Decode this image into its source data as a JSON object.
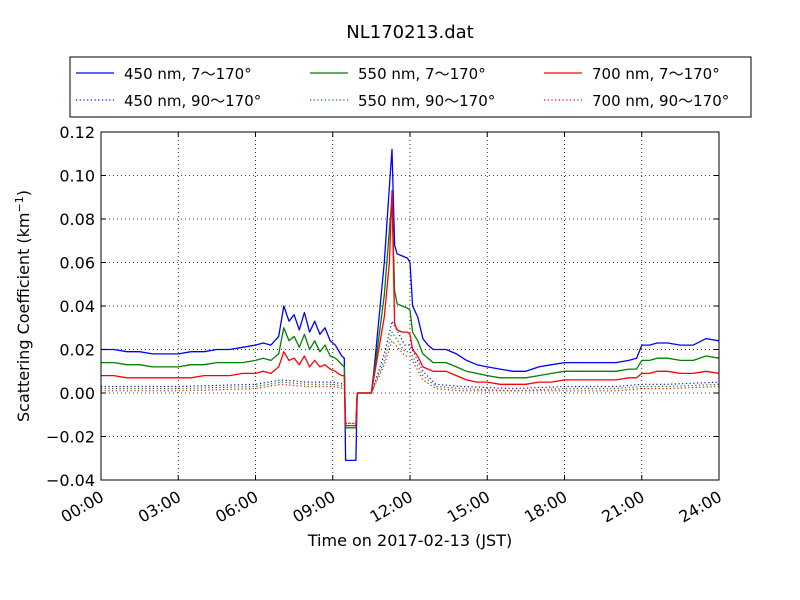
{
  "chart_data": {
    "type": "line",
    "title": "NL170213.dat",
    "xlabel": "Time on 2017-02-13 (JST)",
    "ylabel_main": "Scattering Coefficient (km",
    "ylabel_sup": "−1",
    "ylabel_close": ")",
    "xlim": [
      0,
      24
    ],
    "ylim": [
      -0.04,
      0.12
    ],
    "grid": true,
    "legend_position": "top (above plot)",
    "x_ticks": [
      0,
      3,
      6,
      9,
      12,
      15,
      18,
      21,
      24
    ],
    "x_tick_labels": [
      "00:00",
      "03:00",
      "06:00",
      "09:00",
      "12:00",
      "15:00",
      "18:00",
      "21:00",
      "24:00"
    ],
    "y_ticks": [
      -0.04,
      -0.02,
      0.0,
      0.02,
      0.04,
      0.06,
      0.08,
      0.1,
      0.12
    ],
    "y_tick_labels": [
      "−0.04",
      "−0.02",
      "0.00",
      "0.02",
      "0.04",
      "0.06",
      "0.08",
      "0.10",
      "0.12"
    ],
    "series": [
      {
        "name": "450 nm, 7～170°",
        "color": "#0000ff",
        "style": "solid",
        "x": [
          0.0,
          0.5,
          1.0,
          1.5,
          2.0,
          2.5,
          3.0,
          3.5,
          4.0,
          4.5,
          5.0,
          5.5,
          6.0,
          6.3,
          6.6,
          6.9,
          7.1,
          7.3,
          7.5,
          7.7,
          7.9,
          8.1,
          8.3,
          8.5,
          8.7,
          8.9,
          9.1,
          9.2,
          9.35,
          9.45,
          9.5,
          9.9,
          9.95,
          10.0,
          10.5,
          10.6,
          11.0,
          11.2,
          11.3,
          11.4,
          11.5,
          11.7,
          11.9,
          12.0,
          12.1,
          12.3,
          12.5,
          12.7,
          12.9,
          13.1,
          13.4,
          13.8,
          14.2,
          14.6,
          15.0,
          15.5,
          16.0,
          16.5,
          17.0,
          17.5,
          18.0,
          18.5,
          19.0,
          19.5,
          20.0,
          20.5,
          20.8,
          21.0,
          21.3,
          21.6,
          22.0,
          22.5,
          23.0,
          23.5,
          24.0
        ],
        "y": [
          0.02,
          0.02,
          0.019,
          0.019,
          0.018,
          0.018,
          0.018,
          0.019,
          0.019,
          0.02,
          0.02,
          0.021,
          0.022,
          0.023,
          0.022,
          0.026,
          0.04,
          0.033,
          0.036,
          0.029,
          0.037,
          0.028,
          0.033,
          0.027,
          0.03,
          0.024,
          0.022,
          0.02,
          0.017,
          0.016,
          -0.031,
          -0.031,
          0.0,
          0.0,
          0.0,
          0.01,
          0.06,
          0.095,
          0.112,
          0.068,
          0.064,
          0.063,
          0.062,
          0.06,
          0.04,
          0.035,
          0.025,
          0.022,
          0.02,
          0.02,
          0.02,
          0.018,
          0.015,
          0.013,
          0.012,
          0.011,
          0.01,
          0.01,
          0.012,
          0.013,
          0.014,
          0.014,
          0.014,
          0.014,
          0.014,
          0.015,
          0.016,
          0.022,
          0.022,
          0.023,
          0.023,
          0.022,
          0.022,
          0.025,
          0.024
        ]
      },
      {
        "name": "450 nm, 90～170°",
        "color": "#0000ff",
        "style": "dotted",
        "x": [
          0.0,
          3.0,
          6.0,
          7.0,
          8.0,
          9.0,
          9.45,
          9.5,
          9.9,
          9.95,
          10.5,
          11.0,
          11.3,
          11.8,
          12.0,
          12.5,
          13.0,
          14.0,
          16.0,
          18.0,
          20.0,
          21.0,
          22.0,
          24.0
        ],
        "y": [
          0.003,
          0.003,
          0.004,
          0.006,
          0.005,
          0.005,
          0.004,
          -0.015,
          -0.015,
          0.0,
          0.0,
          0.018,
          0.033,
          0.022,
          0.022,
          0.01,
          0.004,
          0.003,
          0.002,
          0.003,
          0.003,
          0.004,
          0.004,
          0.005
        ]
      },
      {
        "name": "550 nm, 7～170°",
        "color": "#008000",
        "style": "solid",
        "x": [
          0.0,
          0.5,
          1.0,
          1.5,
          2.0,
          2.5,
          3.0,
          3.5,
          4.0,
          4.5,
          5.0,
          5.5,
          6.0,
          6.3,
          6.6,
          6.9,
          7.1,
          7.3,
          7.5,
          7.7,
          7.9,
          8.1,
          8.3,
          8.5,
          8.7,
          8.9,
          9.1,
          9.2,
          9.35,
          9.45,
          9.5,
          9.9,
          9.95,
          10.0,
          10.5,
          10.6,
          11.0,
          11.2,
          11.3,
          11.4,
          11.5,
          11.7,
          11.9,
          12.0,
          12.1,
          12.3,
          12.5,
          12.7,
          12.9,
          13.1,
          13.4,
          13.8,
          14.2,
          14.6,
          15.0,
          15.5,
          16.0,
          16.5,
          17.0,
          17.5,
          18.0,
          18.5,
          19.0,
          19.5,
          20.0,
          20.5,
          20.8,
          21.0,
          21.3,
          21.6,
          22.0,
          22.5,
          23.0,
          23.5,
          24.0
        ],
        "y": [
          0.014,
          0.014,
          0.013,
          0.013,
          0.012,
          0.012,
          0.012,
          0.013,
          0.013,
          0.014,
          0.014,
          0.014,
          0.015,
          0.016,
          0.015,
          0.018,
          0.03,
          0.024,
          0.026,
          0.021,
          0.027,
          0.02,
          0.024,
          0.019,
          0.022,
          0.017,
          0.016,
          0.015,
          0.013,
          0.012,
          -0.016,
          -0.016,
          0.0,
          0.0,
          0.0,
          0.008,
          0.045,
          0.075,
          0.09,
          0.047,
          0.041,
          0.04,
          0.039,
          0.038,
          0.028,
          0.024,
          0.018,
          0.016,
          0.014,
          0.014,
          0.014,
          0.012,
          0.01,
          0.009,
          0.008,
          0.007,
          0.007,
          0.007,
          0.008,
          0.009,
          0.01,
          0.01,
          0.01,
          0.01,
          0.01,
          0.011,
          0.011,
          0.015,
          0.015,
          0.016,
          0.016,
          0.015,
          0.015,
          0.017,
          0.016
        ]
      },
      {
        "name": "550 nm, 90～170°",
        "color": "#008000",
        "style": "dotted",
        "x": [
          0.0,
          3.0,
          6.0,
          7.0,
          8.0,
          9.0,
          9.45,
          9.5,
          9.9,
          9.95,
          10.5,
          11.0,
          11.3,
          11.8,
          12.0,
          12.5,
          13.0,
          14.0,
          16.0,
          18.0,
          20.0,
          21.0,
          22.0,
          24.0
        ],
        "y": [
          0.002,
          0.002,
          0.003,
          0.005,
          0.004,
          0.004,
          0.003,
          -0.014,
          -0.014,
          0.0,
          0.0,
          0.015,
          0.028,
          0.019,
          0.019,
          0.008,
          0.003,
          0.002,
          0.001,
          0.002,
          0.002,
          0.003,
          0.003,
          0.004
        ]
      },
      {
        "name": "700 nm, 7～170°",
        "color": "#ff0000",
        "style": "solid",
        "x": [
          0.0,
          0.5,
          1.0,
          1.5,
          2.0,
          2.5,
          3.0,
          3.5,
          4.0,
          4.5,
          5.0,
          5.5,
          6.0,
          6.3,
          6.6,
          6.9,
          7.1,
          7.3,
          7.5,
          7.7,
          7.9,
          8.1,
          8.3,
          8.5,
          8.7,
          8.9,
          9.1,
          9.2,
          9.35,
          9.45,
          9.5,
          9.9,
          9.95,
          10.0,
          10.5,
          10.6,
          11.0,
          11.2,
          11.3,
          11.4,
          11.5,
          11.7,
          11.9,
          12.0,
          12.1,
          12.3,
          12.5,
          12.7,
          12.9,
          13.1,
          13.4,
          13.8,
          14.2,
          14.6,
          15.0,
          15.5,
          16.0,
          16.5,
          17.0,
          17.5,
          18.0,
          18.5,
          19.0,
          19.5,
          20.0,
          20.5,
          20.8,
          21.0,
          21.3,
          21.6,
          22.0,
          22.5,
          23.0,
          23.5,
          24.0
        ],
        "y": [
          0.008,
          0.008,
          0.007,
          0.007,
          0.007,
          0.007,
          0.007,
          0.007,
          0.008,
          0.008,
          0.008,
          0.009,
          0.009,
          0.01,
          0.009,
          0.012,
          0.019,
          0.015,
          0.016,
          0.013,
          0.017,
          0.012,
          0.015,
          0.012,
          0.013,
          0.011,
          0.01,
          0.009,
          0.008,
          0.008,
          -0.015,
          -0.015,
          0.0,
          0.0,
          0.0,
          0.007,
          0.035,
          0.06,
          0.093,
          0.032,
          0.029,
          0.028,
          0.028,
          0.027,
          0.02,
          0.017,
          0.012,
          0.011,
          0.01,
          0.01,
          0.01,
          0.008,
          0.006,
          0.005,
          0.005,
          0.004,
          0.004,
          0.004,
          0.005,
          0.005,
          0.006,
          0.006,
          0.006,
          0.006,
          0.006,
          0.007,
          0.007,
          0.009,
          0.009,
          0.01,
          0.01,
          0.009,
          0.009,
          0.01,
          0.009
        ]
      },
      {
        "name": "700 nm, 90～170°",
        "color": "#ff0000",
        "style": "dotted",
        "x": [
          0.0,
          3.0,
          6.0,
          7.0,
          8.0,
          9.0,
          9.45,
          9.5,
          9.9,
          9.95,
          10.5,
          11.0,
          11.3,
          11.8,
          12.0,
          12.5,
          13.0,
          14.0,
          16.0,
          18.0,
          20.0,
          21.0,
          22.0,
          24.0
        ],
        "y": [
          0.001,
          0.001,
          0.002,
          0.004,
          0.003,
          0.003,
          0.002,
          -0.014,
          -0.014,
          0.0,
          0.0,
          0.013,
          0.024,
          0.017,
          0.017,
          0.006,
          0.002,
          0.001,
          0.001,
          0.001,
          0.001,
          0.002,
          0.002,
          0.003
        ]
      }
    ]
  }
}
